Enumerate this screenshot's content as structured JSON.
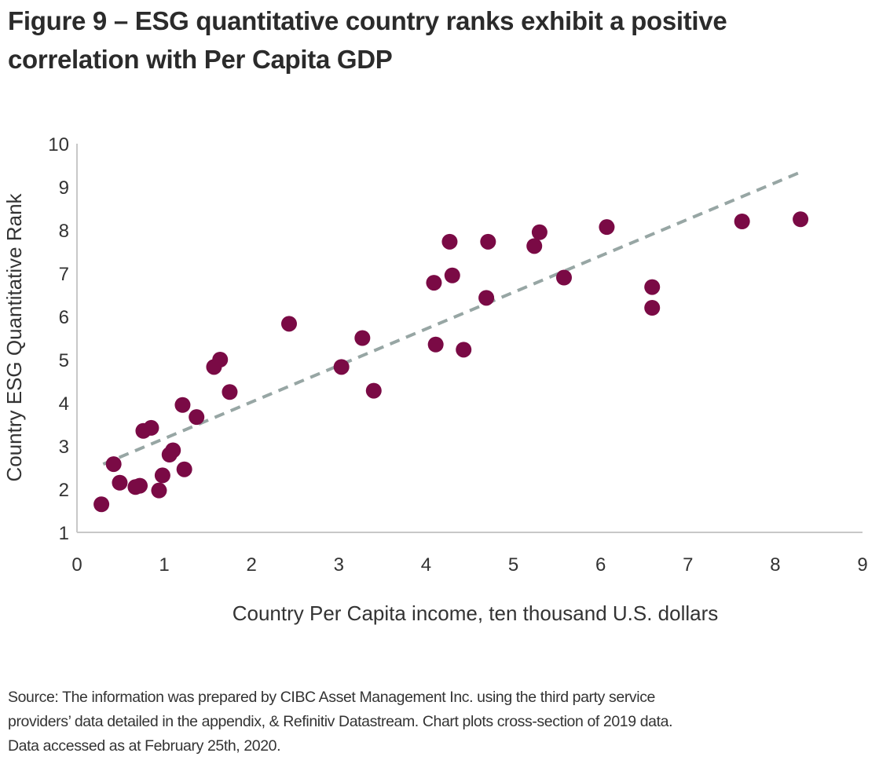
{
  "title": "Figure 9 – ESG quantitative country ranks exhibit a positive correlation with Per Capita GDP",
  "source_lines": [
    "Source: The information was prepared by CIBC Asset Management Inc. using the third party service",
    "providers’ data detailed in the appendix, & Refinitiv Datastream. Chart plots cross-section of 2019 data.",
    "Data accessed as at February 25th, 2020."
  ],
  "chart_data": {
    "type": "scatter",
    "xlabel": "Country Per Capita income, ten thousand U.S. dollars",
    "ylabel": "Country ESG Quantitative Rank",
    "xlim": [
      0,
      9
    ],
    "ylim": [
      1,
      10
    ],
    "x_ticks": [
      "0",
      "1",
      "2",
      "3",
      "4",
      "5",
      "6",
      "7",
      "8",
      "9"
    ],
    "y_ticks": [
      "1",
      "2",
      "3",
      "4",
      "5",
      "6",
      "7",
      "8",
      "9",
      "10"
    ],
    "grid": false,
    "legend": "none",
    "point_color": "#7a0a45",
    "trendline_color": "#97a6a4",
    "trendline": {
      "x": [
        0.3,
        8.3
      ],
      "y": [
        2.58,
        9.35
      ],
      "style": "dashed"
    },
    "points": [
      {
        "x": 0.28,
        "y": 1.65
      },
      {
        "x": 0.42,
        "y": 2.58
      },
      {
        "x": 0.49,
        "y": 2.15
      },
      {
        "x": 0.67,
        "y": 2.05
      },
      {
        "x": 0.72,
        "y": 2.08
      },
      {
        "x": 0.76,
        "y": 3.35
      },
      {
        "x": 0.85,
        "y": 3.42
      },
      {
        "x": 0.94,
        "y": 1.97
      },
      {
        "x": 0.98,
        "y": 2.32
      },
      {
        "x": 1.06,
        "y": 2.8
      },
      {
        "x": 1.1,
        "y": 2.9
      },
      {
        "x": 1.21,
        "y": 3.95
      },
      {
        "x": 1.23,
        "y": 2.46
      },
      {
        "x": 1.37,
        "y": 3.67
      },
      {
        "x": 1.57,
        "y": 4.83
      },
      {
        "x": 1.64,
        "y": 5.0
      },
      {
        "x": 1.75,
        "y": 4.25
      },
      {
        "x": 2.43,
        "y": 5.83
      },
      {
        "x": 3.03,
        "y": 4.83
      },
      {
        "x": 3.27,
        "y": 5.5
      },
      {
        "x": 3.4,
        "y": 4.28
      },
      {
        "x": 4.09,
        "y": 6.78
      },
      {
        "x": 4.11,
        "y": 5.35
      },
      {
        "x": 4.27,
        "y": 7.73
      },
      {
        "x": 4.3,
        "y": 6.95
      },
      {
        "x": 4.43,
        "y": 5.23
      },
      {
        "x": 4.69,
        "y": 6.43
      },
      {
        "x": 4.71,
        "y": 7.73
      },
      {
        "x": 5.24,
        "y": 7.63
      },
      {
        "x": 5.3,
        "y": 7.95
      },
      {
        "x": 5.58,
        "y": 6.9
      },
      {
        "x": 6.07,
        "y": 8.07
      },
      {
        "x": 6.59,
        "y": 6.68
      },
      {
        "x": 6.59,
        "y": 6.2
      },
      {
        "x": 7.62,
        "y": 8.2
      },
      {
        "x": 8.29,
        "y": 8.25
      }
    ]
  }
}
